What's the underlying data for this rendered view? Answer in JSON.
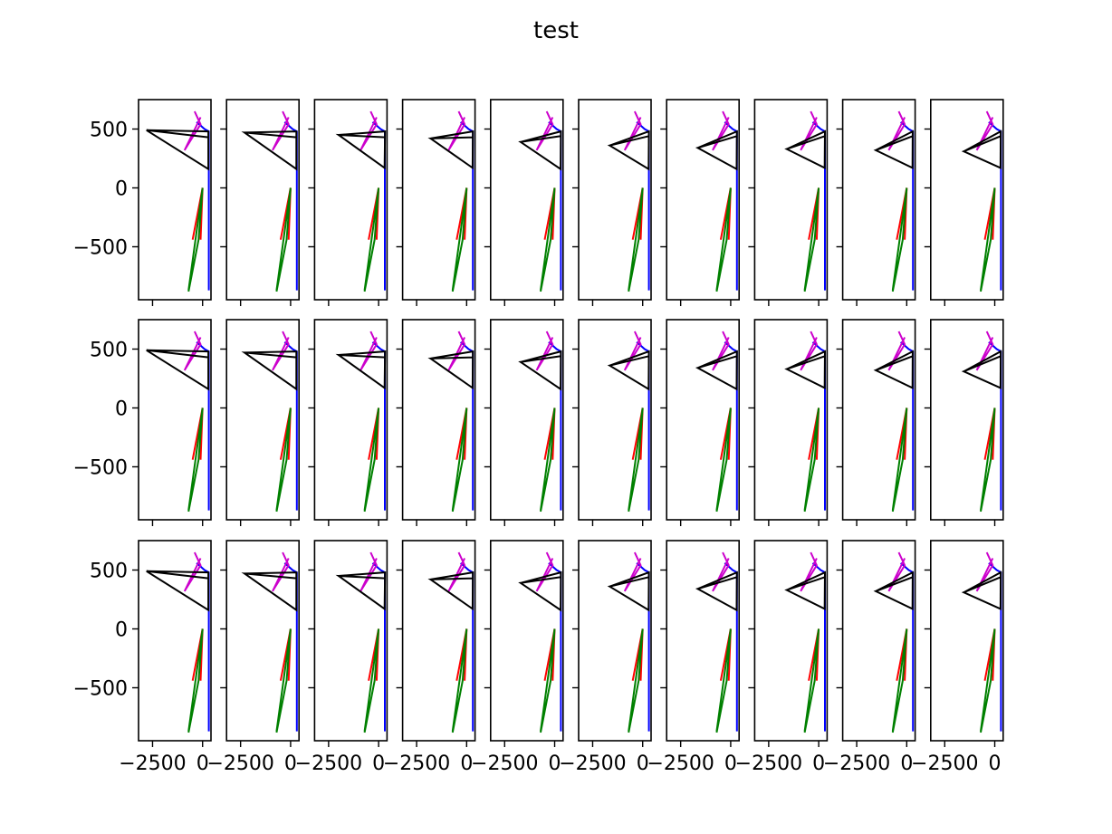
{
  "title": "test",
  "chart_data": {
    "type": "line",
    "title": "test",
    "grid": false,
    "layout": {
      "rows": 3,
      "cols": 10,
      "sharex": true,
      "sharey": true
    },
    "xlabel": "",
    "ylabel": "",
    "xlim": [
      -3200,
      420
    ],
    "ylim": [
      -950,
      750
    ],
    "xticks": [
      -2500,
      0
    ],
    "xtick_labels": [
      "−2500",
      "0"
    ],
    "yticks": [
      500,
      0,
      -500
    ],
    "ytick_labels": [
      "500",
      "0",
      "−500"
    ],
    "colors": {
      "arm": "#0000ff",
      "left_leg": "#ff0000",
      "right_leg": "#008000",
      "shoulder": "#cc00cc",
      "head": "#000000"
    },
    "panels": [
      {
        "black": [
          [
            -2800,
            490
          ],
          [
            290,
            480
          ],
          [
            290,
            160
          ],
          [
            -2800,
            490
          ],
          [
            290,
            430
          ]
        ]
      },
      {
        "black": [
          [
            -2300,
            470
          ],
          [
            290,
            480
          ],
          [
            290,
            160
          ],
          [
            -2300,
            470
          ],
          [
            290,
            430
          ]
        ]
      },
      {
        "black": [
          [
            -2000,
            450
          ],
          [
            320,
            480
          ],
          [
            300,
            170
          ],
          [
            -2000,
            450
          ],
          [
            320,
            430
          ]
        ]
      },
      {
        "black": [
          [
            -1800,
            420
          ],
          [
            310,
            480
          ],
          [
            300,
            170
          ],
          [
            -1800,
            420
          ],
          [
            310,
            430
          ]
        ]
      },
      {
        "black": [
          [
            -1700,
            390
          ],
          [
            310,
            480
          ],
          [
            300,
            160
          ],
          [
            -1700,
            390
          ],
          [
            310,
            440
          ]
        ]
      },
      {
        "black": [
          [
            -1650,
            360
          ],
          [
            310,
            480
          ],
          [
            300,
            160
          ],
          [
            -1650,
            360
          ],
          [
            310,
            440
          ]
        ]
      },
      {
        "black": [
          [
            -1650,
            340
          ],
          [
            310,
            480
          ],
          [
            300,
            160
          ],
          [
            -1650,
            340
          ],
          [
            310,
            440
          ]
        ]
      },
      {
        "black": [
          [
            -1600,
            330
          ],
          [
            310,
            480
          ],
          [
            300,
            170
          ],
          [
            -1600,
            330
          ],
          [
            310,
            440
          ]
        ]
      },
      {
        "black": [
          [
            -1550,
            320
          ],
          [
            300,
            480
          ],
          [
            290,
            170
          ],
          [
            -1550,
            320
          ],
          [
            300,
            440
          ]
        ]
      },
      {
        "black": [
          [
            -1550,
            310
          ],
          [
            300,
            480
          ],
          [
            290,
            170
          ],
          [
            -1550,
            310
          ],
          [
            300,
            440
          ]
        ]
      }
    ],
    "common_series": {
      "arm": [
        [
          -300,
          560
        ],
        [
          100,
          500
        ],
        [
          310,
          480
        ],
        [
          310,
          -870
        ]
      ],
      "left_leg": [
        [
          -500,
          -440
        ],
        [
          0,
          0
        ],
        [
          -100,
          -440
        ]
      ],
      "right_leg": [
        [
          -700,
          -870
        ],
        [
          0,
          0
        ],
        [
          -200,
          -440
        ],
        [
          -700,
          -880
        ]
      ],
      "shoulder": [
        [
          -400,
          650
        ],
        [
          -100,
          540
        ],
        [
          -900,
          320
        ],
        [
          -100,
          600
        ]
      ]
    }
  }
}
